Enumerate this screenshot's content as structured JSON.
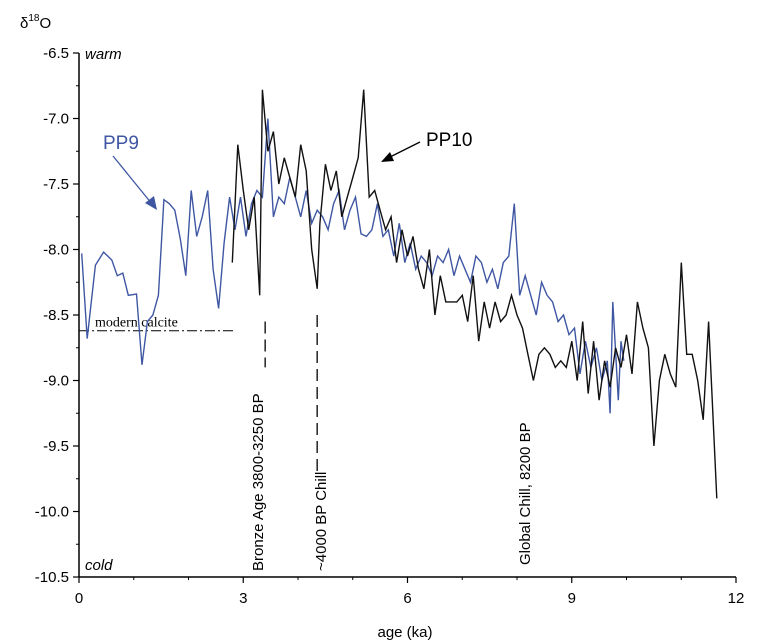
{
  "chart_data": {
    "type": "line",
    "ylabel_base": "δ",
    "ylabel_sup": "18",
    "ylabel_tail": "O",
    "xlabel": "age (ka)",
    "xlim": [
      0,
      12
    ],
    "ylim": [
      -10.5,
      -6.5
    ],
    "y_reversed": true,
    "x_ticks": [
      0,
      3,
      6,
      9,
      12
    ],
    "y_ticks": [
      "-6.5",
      "-7.0",
      "-7.5",
      "-8.0",
      "-8.5",
      "-9.0",
      "-9.5",
      "-10.0",
      "-10.5"
    ],
    "y_top_note": "warm",
    "y_bottom_note": "cold",
    "series": [
      {
        "name": "PP9",
        "color": "#3f57a3",
        "points": [
          [
            0.05,
            -8.03
          ],
          [
            0.15,
            -8.68
          ],
          [
            0.3,
            -8.12
          ],
          [
            0.45,
            -8.02
          ],
          [
            0.6,
            -8.08
          ],
          [
            0.7,
            -8.2
          ],
          [
            0.8,
            -8.18
          ],
          [
            0.9,
            -8.35
          ],
          [
            1.05,
            -8.34
          ],
          [
            1.15,
            -8.88
          ],
          [
            1.25,
            -8.55
          ],
          [
            1.35,
            -8.5
          ],
          [
            1.45,
            -8.35
          ],
          [
            1.55,
            -7.62
          ],
          [
            1.65,
            -7.65
          ],
          [
            1.75,
            -7.7
          ],
          [
            1.85,
            -7.92
          ],
          [
            1.95,
            -8.2
          ],
          [
            2.05,
            -7.55
          ],
          [
            2.15,
            -7.9
          ],
          [
            2.25,
            -7.75
          ],
          [
            2.35,
            -7.55
          ],
          [
            2.45,
            -8.15
          ],
          [
            2.55,
            -8.45
          ],
          [
            2.65,
            -7.95
          ],
          [
            2.75,
            -7.6
          ],
          [
            2.85,
            -7.85
          ],
          [
            2.95,
            -7.6
          ],
          [
            3.05,
            -7.9
          ],
          [
            3.15,
            -7.65
          ],
          [
            3.25,
            -7.55
          ],
          [
            3.35,
            -7.6
          ],
          [
            3.45,
            -7.0
          ],
          [
            3.55,
            -7.75
          ],
          [
            3.65,
            -7.6
          ],
          [
            3.75,
            -7.65
          ],
          [
            3.85,
            -7.45
          ],
          [
            3.95,
            -7.6
          ],
          [
            4.05,
            -7.75
          ],
          [
            4.15,
            -7.55
          ],
          [
            4.25,
            -7.8
          ],
          [
            4.35,
            -7.7
          ],
          [
            4.45,
            -7.75
          ],
          [
            4.55,
            -7.85
          ],
          [
            4.65,
            -7.65
          ],
          [
            4.75,
            -7.55
          ],
          [
            4.85,
            -7.85
          ],
          [
            4.95,
            -7.7
          ],
          [
            5.05,
            -7.6
          ],
          [
            5.15,
            -7.88
          ],
          [
            5.25,
            -7.9
          ],
          [
            5.35,
            -7.85
          ],
          [
            5.45,
            -7.65
          ],
          [
            5.55,
            -7.9
          ],
          [
            5.65,
            -7.85
          ],
          [
            5.75,
            -8.05
          ],
          [
            5.85,
            -7.8
          ],
          [
            5.95,
            -8.1
          ],
          [
            6.05,
            -7.95
          ],
          [
            6.15,
            -8.15
          ],
          [
            6.25,
            -8.05
          ],
          [
            6.35,
            -8.1
          ],
          [
            6.45,
            -8.2
          ],
          [
            6.55,
            -8.05
          ],
          [
            6.65,
            -8.1
          ],
          [
            6.75,
            -8.0
          ],
          [
            6.85,
            -8.2
          ],
          [
            6.95,
            -8.05
          ],
          [
            7.05,
            -8.15
          ],
          [
            7.15,
            -8.25
          ],
          [
            7.25,
            -8.05
          ],
          [
            7.35,
            -8.1
          ],
          [
            7.45,
            -8.25
          ],
          [
            7.55,
            -8.15
          ],
          [
            7.65,
            -8.3
          ],
          [
            7.75,
            -8.1
          ],
          [
            7.85,
            -8.05
          ],
          [
            7.95,
            -7.65
          ],
          [
            8.05,
            -8.35
          ],
          [
            8.15,
            -8.2
          ],
          [
            8.25,
            -8.35
          ],
          [
            8.35,
            -8.5
          ],
          [
            8.45,
            -8.25
          ],
          [
            8.55,
            -8.35
          ],
          [
            8.65,
            -8.4
          ],
          [
            8.75,
            -8.55
          ],
          [
            8.85,
            -8.5
          ],
          [
            8.95,
            -8.65
          ],
          [
            9.05,
            -8.6
          ],
          [
            9.15,
            -8.95
          ],
          [
            9.25,
            -8.7
          ],
          [
            9.35,
            -8.9
          ],
          [
            9.45,
            -8.75
          ],
          [
            9.55,
            -9.0
          ],
          [
            9.65,
            -8.85
          ],
          [
            9.7,
            -9.25
          ],
          [
            9.75,
            -8.4
          ],
          [
            9.85,
            -9.15
          ],
          [
            9.9,
            -8.7
          ],
          [
            9.95,
            -8.85
          ]
        ]
      },
      {
        "name": "PP10",
        "color": "#111111",
        "points": [
          [
            2.8,
            -8.1
          ],
          [
            2.9,
            -7.2
          ],
          [
            3.0,
            -7.55
          ],
          [
            3.1,
            -7.85
          ],
          [
            3.2,
            -7.6
          ],
          [
            3.3,
            -8.35
          ],
          [
            3.35,
            -6.78
          ],
          [
            3.45,
            -7.25
          ],
          [
            3.55,
            -7.1
          ],
          [
            3.65,
            -7.5
          ],
          [
            3.75,
            -7.3
          ],
          [
            3.85,
            -7.45
          ],
          [
            3.95,
            -7.6
          ],
          [
            4.05,
            -7.2
          ],
          [
            4.15,
            -7.4
          ],
          [
            4.25,
            -8.0
          ],
          [
            4.35,
            -8.3
          ],
          [
            4.4,
            -7.8
          ],
          [
            4.5,
            -7.35
          ],
          [
            4.6,
            -7.55
          ],
          [
            4.7,
            -7.4
          ],
          [
            4.8,
            -7.75
          ],
          [
            4.9,
            -7.6
          ],
          [
            5.0,
            -7.45
          ],
          [
            5.1,
            -7.3
          ],
          [
            5.2,
            -6.78
          ],
          [
            5.3,
            -7.6
          ],
          [
            5.4,
            -7.55
          ],
          [
            5.5,
            -7.7
          ],
          [
            5.6,
            -7.85
          ],
          [
            5.7,
            -7.75
          ],
          [
            5.8,
            -8.1
          ],
          [
            5.9,
            -7.85
          ],
          [
            6.0,
            -8.05
          ],
          [
            6.1,
            -7.9
          ],
          [
            6.2,
            -8.15
          ],
          [
            6.3,
            -8.3
          ],
          [
            6.4,
            -8.0
          ],
          [
            6.5,
            -8.5
          ],
          [
            6.6,
            -8.2
          ],
          [
            6.7,
            -8.4
          ],
          [
            6.8,
            -8.4
          ],
          [
            6.9,
            -8.4
          ],
          [
            7.0,
            -8.35
          ],
          [
            7.1,
            -8.55
          ],
          [
            7.2,
            -8.2
          ],
          [
            7.3,
            -8.7
          ],
          [
            7.4,
            -8.4
          ],
          [
            7.5,
            -8.6
          ],
          [
            7.6,
            -8.4
          ],
          [
            7.7,
            -8.55
          ],
          [
            7.8,
            -8.5
          ],
          [
            7.9,
            -8.35
          ],
          [
            8.0,
            -8.5
          ],
          [
            8.1,
            -8.6
          ],
          [
            8.2,
            -8.8
          ],
          [
            8.3,
            -9.0
          ],
          [
            8.4,
            -8.8
          ],
          [
            8.5,
            -8.75
          ],
          [
            8.6,
            -8.8
          ],
          [
            8.7,
            -8.9
          ],
          [
            8.8,
            -8.85
          ],
          [
            8.9,
            -8.9
          ],
          [
            9.0,
            -8.7
          ],
          [
            9.1,
            -9.0
          ],
          [
            9.2,
            -8.55
          ],
          [
            9.3,
            -9.1
          ],
          [
            9.4,
            -8.7
          ],
          [
            9.5,
            -9.15
          ],
          [
            9.6,
            -8.85
          ],
          [
            9.7,
            -9.05
          ],
          [
            9.8,
            -8.75
          ],
          [
            9.9,
            -8.9
          ],
          [
            10.0,
            -8.65
          ],
          [
            10.1,
            -8.95
          ],
          [
            10.2,
            -8.4
          ],
          [
            10.3,
            -8.6
          ],
          [
            10.4,
            -8.75
          ],
          [
            10.5,
            -9.5
          ],
          [
            10.6,
            -9.0
          ],
          [
            10.7,
            -8.8
          ],
          [
            10.8,
            -8.95
          ],
          [
            10.9,
            -9.05
          ],
          [
            11.0,
            -8.1
          ],
          [
            11.1,
            -8.8
          ],
          [
            11.2,
            -8.8
          ],
          [
            11.3,
            -9.0
          ],
          [
            11.4,
            -9.3
          ],
          [
            11.5,
            -8.55
          ],
          [
            11.65,
            -9.9
          ]
        ]
      }
    ],
    "series_labels": [
      {
        "text": "PP9",
        "series": 0
      },
      {
        "text": "PP10",
        "series": 1
      }
    ],
    "reference_line": {
      "label": "modern calcite",
      "y": -8.62,
      "x_start": 0.0,
      "x_end": 2.85
    },
    "events": [
      {
        "label": "Bronze Age 3800-3250 BP",
        "x": 3.4,
        "y_start": -8.55,
        "y_end": -8.9
      },
      {
        "label": "~4000 BP Chill",
        "x": 4.35,
        "y_start": -8.5,
        "y_end": -9.7
      },
      {
        "label": "Global Chill, 8200 BP",
        "x": 8.2
      }
    ]
  }
}
